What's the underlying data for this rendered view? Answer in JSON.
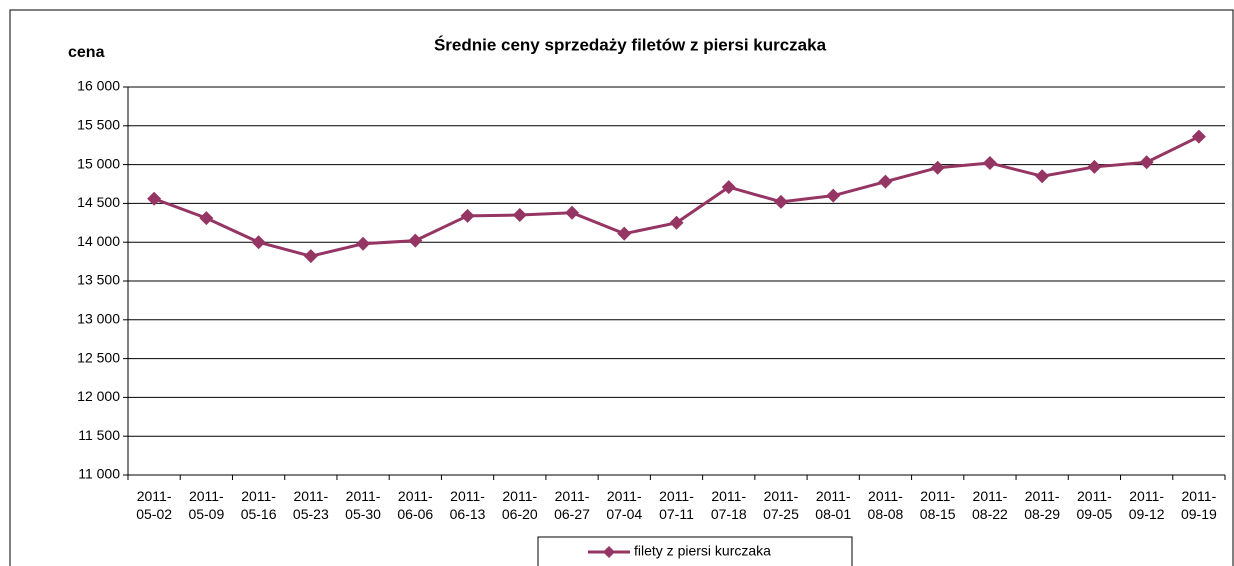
{
  "chart_data": {
    "type": "line",
    "title": "Średnie ceny sprzedaży filetów z piersi kurczaka",
    "y_label": "cena",
    "categories": [
      "2011-05-02",
      "2011-05-09",
      "2011-05-16",
      "2011-05-23",
      "2011-05-30",
      "2011-06-06",
      "2011-06-13",
      "2011-06-20",
      "2011-06-27",
      "2011-07-04",
      "2011-07-11",
      "2011-07-18",
      "2011-07-25",
      "2011-08-01",
      "2011-08-08",
      "2011-08-15",
      "2011-08-22",
      "2011-08-29",
      "2011-09-05",
      "2011-09-12",
      "2011-09-19"
    ],
    "series": [
      {
        "name": "filety z piersi kurczaka",
        "color": "#953563",
        "values": [
          14560,
          14310,
          14000,
          13820,
          13980,
          14020,
          14340,
          14350,
          14380,
          14110,
          14250,
          14710,
          14520,
          14600,
          14780,
          14960,
          15020,
          14850,
          14970,
          15030,
          15360
        ]
      }
    ],
    "ylim": [
      11000,
      16000
    ],
    "yticks": [
      {
        "value": 11000,
        "label": "11 000"
      },
      {
        "value": 11500,
        "label": "11 500"
      },
      {
        "value": 12000,
        "label": "12 000"
      },
      {
        "value": 12500,
        "label": "12 500"
      },
      {
        "value": 13000,
        "label": "13 000"
      },
      {
        "value": 13500,
        "label": "13 500"
      },
      {
        "value": 14000,
        "label": "14 000"
      },
      {
        "value": 14500,
        "label": "14 500"
      },
      {
        "value": 15000,
        "label": "15 000"
      },
      {
        "value": 15500,
        "label": "15 500"
      },
      {
        "value": 16000,
        "label": "16 000"
      }
    ],
    "grid": true,
    "legend": "bottom"
  }
}
